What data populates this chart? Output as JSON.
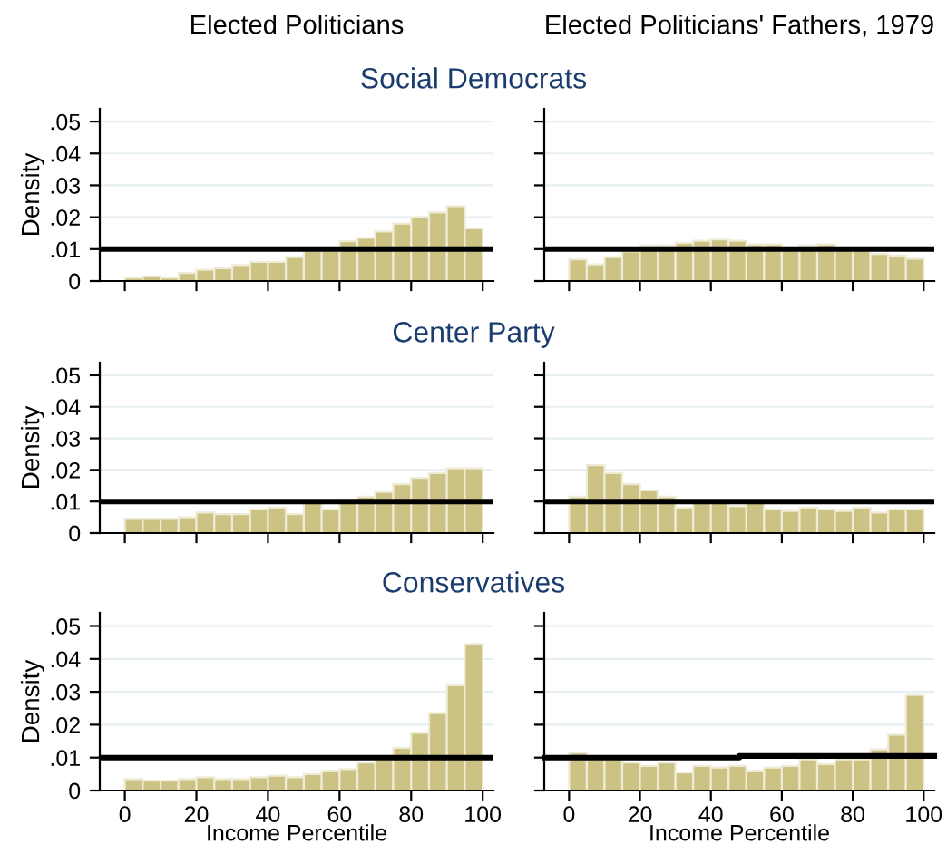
{
  "chart_data": [
    {
      "type": "histogram",
      "title": "Elected Politicians",
      "subtitle": "Social Democrats",
      "ylabel": "Density",
      "bins": [
        0,
        5,
        10,
        15,
        20,
        25,
        30,
        35,
        40,
        45,
        50,
        55,
        60,
        65,
        70,
        75,
        80,
        85,
        90,
        95,
        100
      ],
      "values": [
        0.001,
        0.0015,
        0.001,
        0.0025,
        0.0035,
        0.004,
        0.005,
        0.006,
        0.006,
        0.0075,
        0.0095,
        0.0095,
        0.0125,
        0.0135,
        0.0155,
        0.018,
        0.02,
        0.0215,
        0.0235,
        0.0165
      ],
      "color": "#cbc283",
      "xlim": [
        -7,
        103
      ],
      "xticks": [
        0,
        20,
        40,
        60,
        80,
        100
      ],
      "ylim": [
        0,
        0.054
      ],
      "yticks": [
        0,
        {
          "value": 0.01,
          "label": ".01"
        },
        {
          "value": 0.02,
          "label": ".02"
        },
        {
          "value": 0.03,
          "label": ".03"
        },
        {
          "value": 0.04,
          "label": ".04"
        },
        {
          "value": 0.05,
          "label": ".05"
        }
      ],
      "grid": "y",
      "tick_labels": "y",
      "ref_lines": [
        {
          "axis": "y",
          "value": 0.01,
          "color": "#000000"
        }
      ]
    },
    {
      "type": "histogram",
      "title": "Elected Politicians' Fathers, 1979",
      "bins": [
        0,
        5,
        10,
        15,
        20,
        25,
        30,
        35,
        40,
        45,
        50,
        55,
        60,
        65,
        70,
        75,
        80,
        85,
        90,
        95,
        100
      ],
      "values": [
        0.0068,
        0.0052,
        0.0075,
        0.0093,
        0.0111,
        0.0111,
        0.012,
        0.0126,
        0.013,
        0.0126,
        0.0115,
        0.0115,
        0.0105,
        0.0111,
        0.0115,
        0.0105,
        0.0102,
        0.0085,
        0.008,
        0.007
      ],
      "color": "#cbc283",
      "xlim": [
        -7,
        103
      ],
      "xticks": [
        0,
        20,
        40,
        60,
        80,
        100
      ],
      "ylim": [
        0,
        0.054
      ],
      "yticks": [
        0,
        0.01,
        0.02,
        0.03,
        0.04,
        0.05
      ],
      "grid": "y",
      "tick_labels": false,
      "ref_lines": [
        {
          "axis": "y",
          "value": 0.01,
          "color": "#000000"
        }
      ]
    },
    {
      "type": "histogram",
      "subtitle": "Center Party",
      "ylabel": "Density",
      "bins": [
        0,
        5,
        10,
        15,
        20,
        25,
        30,
        35,
        40,
        45,
        50,
        55,
        60,
        65,
        70,
        75,
        80,
        85,
        90,
        95,
        100
      ],
      "values": [
        0.0045,
        0.0045,
        0.0045,
        0.005,
        0.0065,
        0.006,
        0.006,
        0.0075,
        0.008,
        0.006,
        0.0095,
        0.0075,
        0.0105,
        0.0115,
        0.013,
        0.0155,
        0.0175,
        0.019,
        0.0205,
        0.0205
      ],
      "color": "#cbc283",
      "xlim": [
        -7,
        103
      ],
      "xticks": [
        0,
        20,
        40,
        60,
        80,
        100
      ],
      "ylim": [
        0,
        0.054
      ],
      "yticks": [
        0,
        {
          "value": 0.01,
          "label": ".01"
        },
        {
          "value": 0.02,
          "label": ".02"
        },
        {
          "value": 0.03,
          "label": ".03"
        },
        {
          "value": 0.04,
          "label": ".04"
        },
        {
          "value": 0.05,
          "label": ".05"
        }
      ],
      "grid": "y",
      "tick_labels": "y",
      "ref_lines": [
        {
          "axis": "y",
          "value": 0.01,
          "color": "#000000"
        }
      ]
    },
    {
      "type": "histogram",
      "bins": [
        0,
        5,
        10,
        15,
        20,
        25,
        30,
        35,
        40,
        45,
        50,
        55,
        60,
        65,
        70,
        75,
        80,
        85,
        90,
        95,
        100
      ],
      "values": [
        0.0115,
        0.0215,
        0.019,
        0.0155,
        0.0135,
        0.0115,
        0.008,
        0.0095,
        0.0095,
        0.0085,
        0.0095,
        0.0075,
        0.007,
        0.008,
        0.0075,
        0.007,
        0.008,
        0.0065,
        0.0075,
        0.0075
      ],
      "color": "#cbc283",
      "xlim": [
        -7,
        103
      ],
      "xticks": [
        0,
        20,
        40,
        60,
        80,
        100
      ],
      "ylim": [
        0,
        0.054
      ],
      "yticks": [
        0,
        0.01,
        0.02,
        0.03,
        0.04,
        0.05
      ],
      "grid": "y",
      "tick_labels": false,
      "ref_lines": [
        {
          "axis": "y",
          "value": 0.01,
          "color": "#000000"
        }
      ]
    },
    {
      "type": "histogram",
      "subtitle": "Conservatives",
      "ylabel": "Density",
      "xlabel": "Income Percentile",
      "bins": [
        0,
        5,
        10,
        15,
        20,
        25,
        30,
        35,
        40,
        45,
        50,
        55,
        60,
        65,
        70,
        75,
        80,
        85,
        90,
        95,
        100
      ],
      "values": [
        0.0035,
        0.003,
        0.003,
        0.0035,
        0.004,
        0.0035,
        0.0035,
        0.004,
        0.0045,
        0.004,
        0.005,
        0.006,
        0.0065,
        0.0085,
        0.0095,
        0.013,
        0.0175,
        0.0235,
        0.032,
        0.0445
      ],
      "color": "#cbc283",
      "xlim": [
        -7,
        103
      ],
      "xticks": [
        0,
        20,
        40,
        60,
        80,
        100
      ],
      "ylim": [
        0,
        0.054
      ],
      "yticks": [
        0,
        {
          "value": 0.01,
          "label": ".01"
        },
        {
          "value": 0.02,
          "label": ".02"
        },
        {
          "value": 0.03,
          "label": ".03"
        },
        {
          "value": 0.04,
          "label": ".04"
        },
        {
          "value": 0.05,
          "label": ".05"
        }
      ],
      "grid": "y",
      "ref_lines": [
        {
          "axis": "y",
          "value": 0.01,
          "color": "#000000"
        }
      ]
    },
    {
      "type": "histogram",
      "xlabel": "Income Percentile",
      "bins": [
        0,
        5,
        10,
        15,
        20,
        25,
        30,
        35,
        40,
        45,
        50,
        55,
        60,
        65,
        70,
        75,
        80,
        85,
        90,
        95,
        100
      ],
      "values": [
        0.0115,
        0.0095,
        0.0095,
        0.0085,
        0.0075,
        0.0085,
        0.0055,
        0.0075,
        0.007,
        0.0075,
        0.006,
        0.007,
        0.0075,
        0.0095,
        0.008,
        0.0095,
        0.0095,
        0.0125,
        0.017,
        0.029
      ],
      "color": "#cbc283",
      "xlim": [
        -7,
        103
      ],
      "xticks": [
        0,
        20,
        40,
        60,
        80,
        100
      ],
      "ylim": [
        0,
        0.054
      ],
      "yticks": [
        0,
        0.01,
        0.02,
        0.03,
        0.04,
        0.05
      ],
      "grid": "y",
      "tick_labels": "x",
      "series": [
        {
          "type": "line",
          "color": "#000000",
          "x": [
            -7,
            48,
            48,
            103
          ],
          "values": [
            0.01,
            0.01,
            0.0105,
            0.0105
          ]
        }
      ]
    }
  ]
}
